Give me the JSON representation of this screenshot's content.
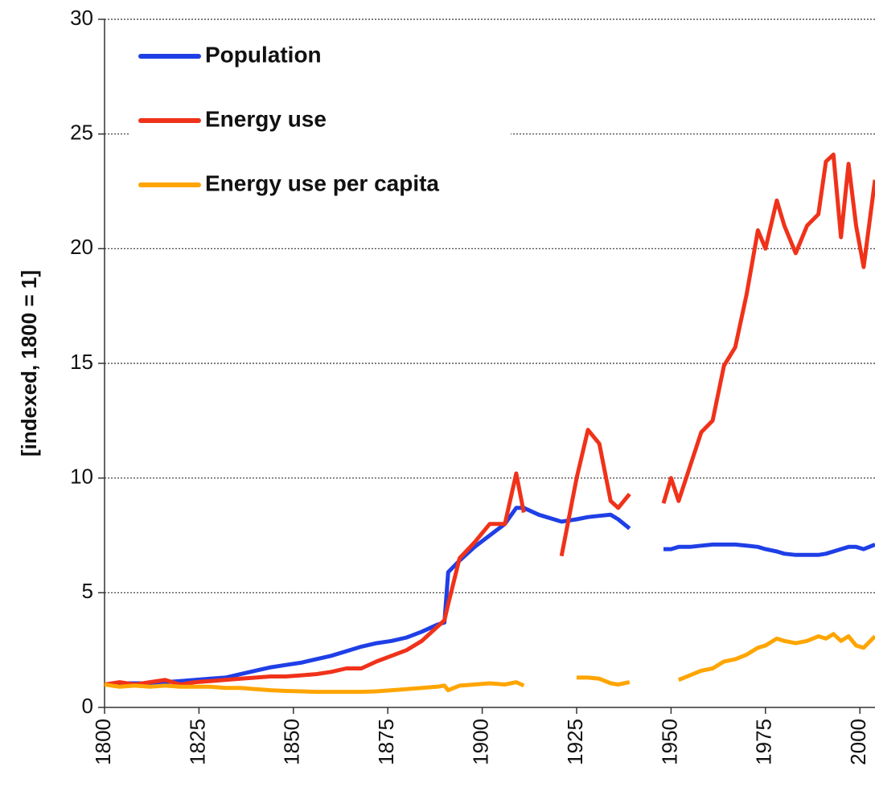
{
  "chart_data": {
    "type": "line",
    "y_axis_label": "[indexed, 1800 = 1]",
    "x": [
      1800,
      1804,
      1808,
      1812,
      1816,
      1820,
      1824,
      1828,
      1832,
      1836,
      1840,
      1844,
      1848,
      1852,
      1856,
      1860,
      1864,
      1868,
      1872,
      1876,
      1880,
      1884,
      1888,
      1890,
      1891,
      1894,
      1898,
      1902,
      1906,
      1909,
      1911,
      1915,
      1921,
      1925,
      1928,
      1931,
      1934,
      1936,
      1939,
      1944,
      1948,
      1950,
      1952,
      1955,
      1958,
      1961,
      1964,
      1967,
      1970,
      1973,
      1975,
      1978,
      1980,
      1983,
      1986,
      1989,
      1991,
      1993,
      1995,
      1997,
      1999,
      2001,
      2004
    ],
    "series": [
      {
        "name": "Population",
        "color": "#1f3fe6",
        "values": [
          1.0,
          1.05,
          1.05,
          1.05,
          1.1,
          1.15,
          1.2,
          1.25,
          1.3,
          1.45,
          1.6,
          1.75,
          1.85,
          1.95,
          2.1,
          2.25,
          2.45,
          2.65,
          2.8,
          2.9,
          3.05,
          3.3,
          3.6,
          3.7,
          5.9,
          6.4,
          7.0,
          7.5,
          8.0,
          8.7,
          8.7,
          8.4,
          8.1,
          8.2,
          8.3,
          8.35,
          8.4,
          8.2,
          7.8,
          null,
          6.9,
          6.9,
          7.0,
          7.0,
          7.05,
          7.1,
          7.1,
          7.1,
          7.05,
          7.0,
          6.9,
          6.8,
          6.7,
          6.65,
          6.65,
          6.65,
          6.7,
          6.8,
          6.9,
          7.0,
          7.0,
          6.9,
          7.1
        ]
      },
      {
        "name": "Energy use",
        "color": "#f0321a",
        "values": [
          1.0,
          1.1,
          1.0,
          1.1,
          1.2,
          1.0,
          1.1,
          1.15,
          1.2,
          1.25,
          1.3,
          1.35,
          1.35,
          1.4,
          1.45,
          1.55,
          1.7,
          1.7,
          2.0,
          2.25,
          2.5,
          2.9,
          3.5,
          3.8,
          4.5,
          6.5,
          7.2,
          8.0,
          8.0,
          10.2,
          8.5,
          null,
          6.6,
          10.0,
          12.1,
          11.5,
          9.0,
          8.7,
          9.3,
          null,
          8.9,
          10.0,
          9.0,
          10.5,
          12.0,
          12.5,
          14.9,
          15.7,
          18.0,
          20.8,
          20.0,
          22.1,
          21.0,
          19.8,
          21.0,
          21.5,
          23.8,
          24.1,
          20.5,
          23.7,
          21.0,
          19.2,
          23.0
        ]
      },
      {
        "name": "Energy use per capita",
        "color": "#ffa500",
        "values": [
          1.0,
          0.9,
          0.95,
          0.9,
          0.95,
          0.9,
          0.9,
          0.9,
          0.85,
          0.85,
          0.8,
          0.75,
          0.72,
          0.7,
          0.68,
          0.68,
          0.68,
          0.68,
          0.7,
          0.75,
          0.8,
          0.85,
          0.9,
          0.95,
          0.75,
          0.95,
          1.0,
          1.05,
          1.0,
          1.1,
          0.95,
          null,
          null,
          1.3,
          1.3,
          1.25,
          1.05,
          1.0,
          1.1,
          null,
          null,
          null,
          1.2,
          1.4,
          1.6,
          1.7,
          2.0,
          2.1,
          2.3,
          2.6,
          2.7,
          3.0,
          2.9,
          2.8,
          2.9,
          3.1,
          3.0,
          3.2,
          2.9,
          3.1,
          2.7,
          2.6,
          3.1
        ]
      }
    ],
    "xlim": [
      1800,
      2004
    ],
    "ylim": [
      0,
      30
    ],
    "xticks": [
      1800,
      1825,
      1850,
      1875,
      1900,
      1925,
      1950,
      1975,
      2000
    ],
    "yticks": [
      0,
      5,
      10,
      15,
      20,
      25,
      30
    ],
    "grid": true,
    "legend": "upper left"
  }
}
